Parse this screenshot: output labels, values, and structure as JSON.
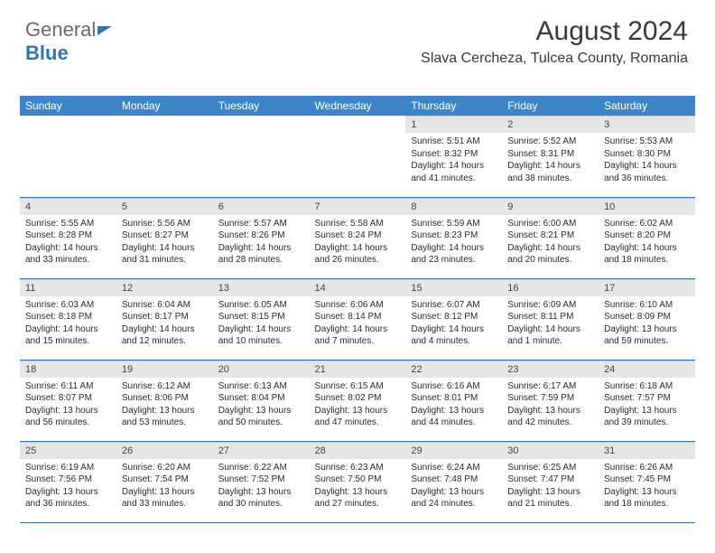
{
  "brand": {
    "part1": "General",
    "part2": "Blue"
  },
  "title": "August 2024",
  "location": "Slava Cercheza, Tulcea County, Romania",
  "colors": {
    "header_bg": "#3d85c6",
    "header_text": "#ffffff",
    "daynum_bg": "#e6e6e6",
    "border": "#2e75b6",
    "title_color": "#3a3a3a",
    "body_text": "#2b2b2b"
  },
  "day_headers": [
    "Sunday",
    "Monday",
    "Tuesday",
    "Wednesday",
    "Thursday",
    "Friday",
    "Saturday"
  ],
  "weeks": [
    [
      {
        "n": "",
        "sr": "",
        "ss": "",
        "dl": "",
        "empty": true
      },
      {
        "n": "",
        "sr": "",
        "ss": "",
        "dl": "",
        "empty": true
      },
      {
        "n": "",
        "sr": "",
        "ss": "",
        "dl": "",
        "empty": true
      },
      {
        "n": "",
        "sr": "",
        "ss": "",
        "dl": "",
        "empty": true
      },
      {
        "n": "1",
        "sr": "5:51 AM",
        "ss": "8:32 PM",
        "dl": "14 hours and 41 minutes."
      },
      {
        "n": "2",
        "sr": "5:52 AM",
        "ss": "8:31 PM",
        "dl": "14 hours and 38 minutes."
      },
      {
        "n": "3",
        "sr": "5:53 AM",
        "ss": "8:30 PM",
        "dl": "14 hours and 36 minutes."
      }
    ],
    [
      {
        "n": "4",
        "sr": "5:55 AM",
        "ss": "8:28 PM",
        "dl": "14 hours and 33 minutes."
      },
      {
        "n": "5",
        "sr": "5:56 AM",
        "ss": "8:27 PM",
        "dl": "14 hours and 31 minutes."
      },
      {
        "n": "6",
        "sr": "5:57 AM",
        "ss": "8:26 PM",
        "dl": "14 hours and 28 minutes."
      },
      {
        "n": "7",
        "sr": "5:58 AM",
        "ss": "8:24 PM",
        "dl": "14 hours and 26 minutes."
      },
      {
        "n": "8",
        "sr": "5:59 AM",
        "ss": "8:23 PM",
        "dl": "14 hours and 23 minutes."
      },
      {
        "n": "9",
        "sr": "6:00 AM",
        "ss": "8:21 PM",
        "dl": "14 hours and 20 minutes."
      },
      {
        "n": "10",
        "sr": "6:02 AM",
        "ss": "8:20 PM",
        "dl": "14 hours and 18 minutes."
      }
    ],
    [
      {
        "n": "11",
        "sr": "6:03 AM",
        "ss": "8:18 PM",
        "dl": "14 hours and 15 minutes."
      },
      {
        "n": "12",
        "sr": "6:04 AM",
        "ss": "8:17 PM",
        "dl": "14 hours and 12 minutes."
      },
      {
        "n": "13",
        "sr": "6:05 AM",
        "ss": "8:15 PM",
        "dl": "14 hours and 10 minutes."
      },
      {
        "n": "14",
        "sr": "6:06 AM",
        "ss": "8:14 PM",
        "dl": "14 hours and 7 minutes."
      },
      {
        "n": "15",
        "sr": "6:07 AM",
        "ss": "8:12 PM",
        "dl": "14 hours and 4 minutes."
      },
      {
        "n": "16",
        "sr": "6:09 AM",
        "ss": "8:11 PM",
        "dl": "14 hours and 1 minute."
      },
      {
        "n": "17",
        "sr": "6:10 AM",
        "ss": "8:09 PM",
        "dl": "13 hours and 59 minutes."
      }
    ],
    [
      {
        "n": "18",
        "sr": "6:11 AM",
        "ss": "8:07 PM",
        "dl": "13 hours and 56 minutes."
      },
      {
        "n": "19",
        "sr": "6:12 AM",
        "ss": "8:06 PM",
        "dl": "13 hours and 53 minutes."
      },
      {
        "n": "20",
        "sr": "6:13 AM",
        "ss": "8:04 PM",
        "dl": "13 hours and 50 minutes."
      },
      {
        "n": "21",
        "sr": "6:15 AM",
        "ss": "8:02 PM",
        "dl": "13 hours and 47 minutes."
      },
      {
        "n": "22",
        "sr": "6:16 AM",
        "ss": "8:01 PM",
        "dl": "13 hours and 44 minutes."
      },
      {
        "n": "23",
        "sr": "6:17 AM",
        "ss": "7:59 PM",
        "dl": "13 hours and 42 minutes."
      },
      {
        "n": "24",
        "sr": "6:18 AM",
        "ss": "7:57 PM",
        "dl": "13 hours and 39 minutes."
      }
    ],
    [
      {
        "n": "25",
        "sr": "6:19 AM",
        "ss": "7:56 PM",
        "dl": "13 hours and 36 minutes."
      },
      {
        "n": "26",
        "sr": "6:20 AM",
        "ss": "7:54 PM",
        "dl": "13 hours and 33 minutes."
      },
      {
        "n": "27",
        "sr": "6:22 AM",
        "ss": "7:52 PM",
        "dl": "13 hours and 30 minutes."
      },
      {
        "n": "28",
        "sr": "6:23 AM",
        "ss": "7:50 PM",
        "dl": "13 hours and 27 minutes."
      },
      {
        "n": "29",
        "sr": "6:24 AM",
        "ss": "7:48 PM",
        "dl": "13 hours and 24 minutes."
      },
      {
        "n": "30",
        "sr": "6:25 AM",
        "ss": "7:47 PM",
        "dl": "13 hours and 21 minutes."
      },
      {
        "n": "31",
        "sr": "6:26 AM",
        "ss": "7:45 PM",
        "dl": "13 hours and 18 minutes."
      }
    ]
  ],
  "labels": {
    "sunrise": "Sunrise:",
    "sunset": "Sunset:",
    "daylight": "Daylight:"
  }
}
